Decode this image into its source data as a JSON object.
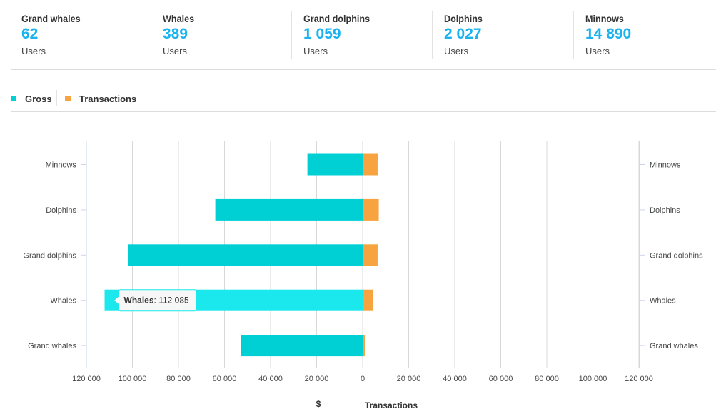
{
  "stats": [
    {
      "name": "Grand whales",
      "value": "62",
      "unit": "Users"
    },
    {
      "name": "Whales",
      "value": "389",
      "unit": "Users"
    },
    {
      "name": "Grand dolphins",
      "value": "1 059",
      "unit": "Users"
    },
    {
      "name": "Dolphins",
      "value": "2 027",
      "unit": "Users"
    },
    {
      "name": "Minnows",
      "value": "14 890",
      "unit": "Users"
    }
  ],
  "legend": [
    {
      "label": "Gross",
      "color": "#00d0d4"
    },
    {
      "label": "Transactions",
      "color": "#f7a440"
    }
  ],
  "chart_data": {
    "type": "bar",
    "orientation": "horizontal-mirrored",
    "categories": [
      "Minnows",
      "Dolphins",
      "Grand dolphins",
      "Whales",
      "Grand whales"
    ],
    "series": [
      {
        "name": "Gross",
        "color": "#00d0d4",
        "side": "left",
        "values": [
          24000,
          64000,
          102000,
          112085,
          53000
        ]
      },
      {
        "name": "Transactions",
        "color": "#f7a440",
        "side": "right",
        "values": [
          6500,
          7000,
          6500,
          4500,
          1000
        ]
      }
    ],
    "left_axis": {
      "range": [
        120000,
        0
      ],
      "ticks": [
        "120 000",
        "100 000",
        "80 000",
        "60 000",
        "40 000",
        "20 000",
        "0"
      ],
      "title": "$"
    },
    "right_axis": {
      "range": [
        0,
        120000
      ],
      "ticks": [
        "20 000",
        "40 000",
        "60 000",
        "80 000",
        "100 000",
        "120 000"
      ],
      "title": "Transactions"
    },
    "tooltip": {
      "label": "Whales",
      "value": "112 085",
      "category": "Whales"
    },
    "highlight": "Whales",
    "highlight_color": "#1be8ec",
    "grid": true
  }
}
